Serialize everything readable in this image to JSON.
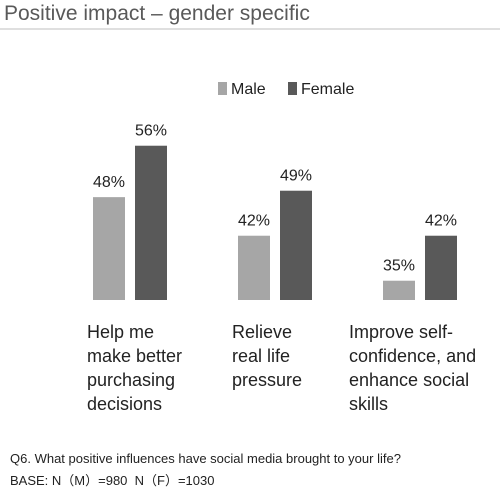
{
  "chart_data": {
    "type": "bar",
    "title": "Positive impact – gender specific",
    "categories": [
      "Help me\nmake better\npurchasing\ndecisions",
      "Relieve\nreal life\npressure",
      "Improve self-\nconfidence, and\nenhance social\nskills"
    ],
    "series": [
      {
        "name": "Male",
        "color": "#a6a6a6",
        "values": [
          48,
          42,
          35
        ],
        "value_labels": [
          "48%",
          "42%",
          "35%"
        ]
      },
      {
        "name": "Female",
        "color": "#595959",
        "values": [
          56,
          49,
          42
        ],
        "value_labels": [
          "56%",
          "49%",
          "42%"
        ]
      }
    ],
    "ylim": [
      32,
      60
    ],
    "notes": [
      "Q6. What positive influences have social media brought to your life?",
      "BASE: N（M）=980  N（F）=1030"
    ]
  }
}
